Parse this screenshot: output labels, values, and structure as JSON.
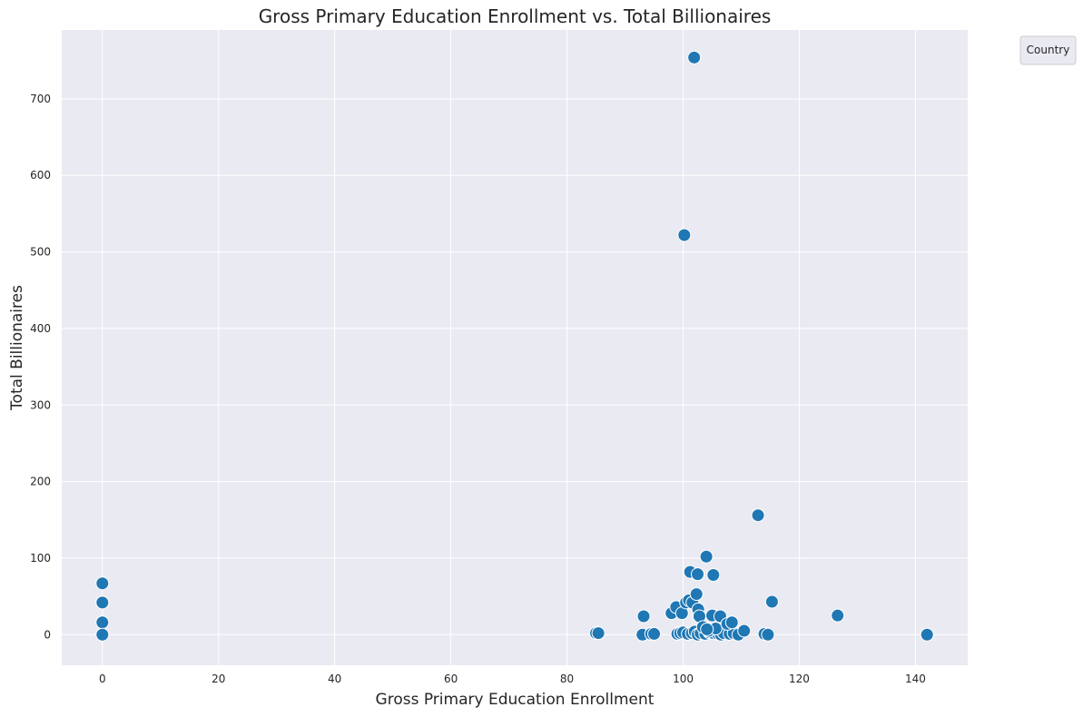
{
  "chart_data": {
    "type": "scatter",
    "title": "Gross Primary Education Enrollment vs. Total Billionaires",
    "xlabel": "Gross Primary Education Enrollment",
    "ylabel": "Total Billionaires",
    "xlim": [
      -7,
      149
    ],
    "ylim": [
      -40,
      790
    ],
    "xticks": [
      0,
      20,
      40,
      60,
      80,
      100,
      120,
      140
    ],
    "yticks": [
      0,
      100,
      200,
      300,
      400,
      500,
      600,
      700
    ],
    "grid": true,
    "legend": {
      "title": "Country",
      "placement": "upper-right-outside",
      "entries": []
    },
    "marker_color": "#1f77b4",
    "background_color": "#eaeaf2",
    "points": [
      [
        0,
        67
      ],
      [
        0,
        42
      ],
      [
        0,
        16
      ],
      [
        0,
        0
      ],
      [
        85,
        2
      ],
      [
        85.4,
        2
      ],
      [
        93,
        0
      ],
      [
        94.5,
        1
      ],
      [
        95,
        1
      ],
      [
        99,
        1
      ],
      [
        99.5,
        2
      ],
      [
        100,
        3
      ],
      [
        100.8,
        1
      ],
      [
        101.5,
        2
      ],
      [
        102,
        4
      ],
      [
        102.5,
        0
      ],
      [
        103,
        2
      ],
      [
        103.8,
        1
      ],
      [
        104.5,
        3
      ],
      [
        105.2,
        2
      ],
      [
        106,
        1
      ],
      [
        106.5,
        0
      ],
      [
        107,
        2
      ],
      [
        108,
        1
      ],
      [
        108.7,
        2
      ],
      [
        109.5,
        0
      ],
      [
        110.5,
        5
      ],
      [
        114,
        1
      ],
      [
        114.6,
        0
      ],
      [
        142,
        0
      ],
      [
        93.2,
        24
      ],
      [
        98,
        28
      ],
      [
        98.8,
        36
      ],
      [
        99.8,
        28
      ],
      [
        100.5,
        42
      ],
      [
        101,
        45
      ],
      [
        101.6,
        42
      ],
      [
        102.3,
        53
      ],
      [
        102.6,
        33
      ],
      [
        102.8,
        24
      ],
      [
        103.4,
        10
      ],
      [
        104.4,
        5
      ],
      [
        105,
        25
      ],
      [
        105.6,
        8
      ],
      [
        106.4,
        24
      ],
      [
        107.6,
        14
      ],
      [
        108.4,
        16
      ],
      [
        104.1,
        7
      ],
      [
        101.2,
        82
      ],
      [
        102.5,
        79
      ],
      [
        105.2,
        78
      ],
      [
        104,
        102
      ],
      [
        115.3,
        43
      ],
      [
        126.6,
        25
      ],
      [
        112.9,
        156
      ],
      [
        100.2,
        522
      ],
      [
        101.9,
        754
      ]
    ]
  }
}
